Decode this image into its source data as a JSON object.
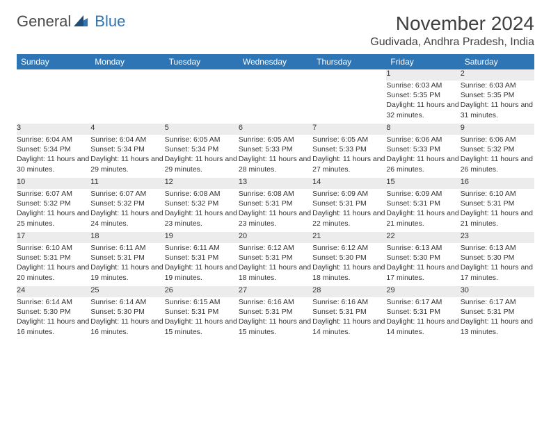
{
  "logo": {
    "text1": "General",
    "text2": "Blue"
  },
  "header": {
    "month_title": "November 2024",
    "location": "Gudivada, Andhra Pradesh, India"
  },
  "colors": {
    "header_bg": "#2e75b6",
    "header_text": "#ffffff",
    "daynum_bg": "#ececec",
    "text": "#333333",
    "logo_gray": "#4a4a4a",
    "logo_blue": "#2e75b6"
  },
  "weekdays": [
    "Sunday",
    "Monday",
    "Tuesday",
    "Wednesday",
    "Thursday",
    "Friday",
    "Saturday"
  ],
  "weeks": [
    [
      null,
      null,
      null,
      null,
      null,
      {
        "n": "1",
        "sr": "Sunrise: 6:03 AM",
        "ss": "Sunset: 5:35 PM",
        "dl": "Daylight: 11 hours and 32 minutes."
      },
      {
        "n": "2",
        "sr": "Sunrise: 6:03 AM",
        "ss": "Sunset: 5:35 PM",
        "dl": "Daylight: 11 hours and 31 minutes."
      }
    ],
    [
      {
        "n": "3",
        "sr": "Sunrise: 6:04 AM",
        "ss": "Sunset: 5:34 PM",
        "dl": "Daylight: 11 hours and 30 minutes."
      },
      {
        "n": "4",
        "sr": "Sunrise: 6:04 AM",
        "ss": "Sunset: 5:34 PM",
        "dl": "Daylight: 11 hours and 29 minutes."
      },
      {
        "n": "5",
        "sr": "Sunrise: 6:05 AM",
        "ss": "Sunset: 5:34 PM",
        "dl": "Daylight: 11 hours and 29 minutes."
      },
      {
        "n": "6",
        "sr": "Sunrise: 6:05 AM",
        "ss": "Sunset: 5:33 PM",
        "dl": "Daylight: 11 hours and 28 minutes."
      },
      {
        "n": "7",
        "sr": "Sunrise: 6:05 AM",
        "ss": "Sunset: 5:33 PM",
        "dl": "Daylight: 11 hours and 27 minutes."
      },
      {
        "n": "8",
        "sr": "Sunrise: 6:06 AM",
        "ss": "Sunset: 5:33 PM",
        "dl": "Daylight: 11 hours and 26 minutes."
      },
      {
        "n": "9",
        "sr": "Sunrise: 6:06 AM",
        "ss": "Sunset: 5:32 PM",
        "dl": "Daylight: 11 hours and 26 minutes."
      }
    ],
    [
      {
        "n": "10",
        "sr": "Sunrise: 6:07 AM",
        "ss": "Sunset: 5:32 PM",
        "dl": "Daylight: 11 hours and 25 minutes."
      },
      {
        "n": "11",
        "sr": "Sunrise: 6:07 AM",
        "ss": "Sunset: 5:32 PM",
        "dl": "Daylight: 11 hours and 24 minutes."
      },
      {
        "n": "12",
        "sr": "Sunrise: 6:08 AM",
        "ss": "Sunset: 5:32 PM",
        "dl": "Daylight: 11 hours and 23 minutes."
      },
      {
        "n": "13",
        "sr": "Sunrise: 6:08 AM",
        "ss": "Sunset: 5:31 PM",
        "dl": "Daylight: 11 hours and 23 minutes."
      },
      {
        "n": "14",
        "sr": "Sunrise: 6:09 AM",
        "ss": "Sunset: 5:31 PM",
        "dl": "Daylight: 11 hours and 22 minutes."
      },
      {
        "n": "15",
        "sr": "Sunrise: 6:09 AM",
        "ss": "Sunset: 5:31 PM",
        "dl": "Daylight: 11 hours and 21 minutes."
      },
      {
        "n": "16",
        "sr": "Sunrise: 6:10 AM",
        "ss": "Sunset: 5:31 PM",
        "dl": "Daylight: 11 hours and 21 minutes."
      }
    ],
    [
      {
        "n": "17",
        "sr": "Sunrise: 6:10 AM",
        "ss": "Sunset: 5:31 PM",
        "dl": "Daylight: 11 hours and 20 minutes."
      },
      {
        "n": "18",
        "sr": "Sunrise: 6:11 AM",
        "ss": "Sunset: 5:31 PM",
        "dl": "Daylight: 11 hours and 19 minutes."
      },
      {
        "n": "19",
        "sr": "Sunrise: 6:11 AM",
        "ss": "Sunset: 5:31 PM",
        "dl": "Daylight: 11 hours and 19 minutes."
      },
      {
        "n": "20",
        "sr": "Sunrise: 6:12 AM",
        "ss": "Sunset: 5:31 PM",
        "dl": "Daylight: 11 hours and 18 minutes."
      },
      {
        "n": "21",
        "sr": "Sunrise: 6:12 AM",
        "ss": "Sunset: 5:30 PM",
        "dl": "Daylight: 11 hours and 18 minutes."
      },
      {
        "n": "22",
        "sr": "Sunrise: 6:13 AM",
        "ss": "Sunset: 5:30 PM",
        "dl": "Daylight: 11 hours and 17 minutes."
      },
      {
        "n": "23",
        "sr": "Sunrise: 6:13 AM",
        "ss": "Sunset: 5:30 PM",
        "dl": "Daylight: 11 hours and 17 minutes."
      }
    ],
    [
      {
        "n": "24",
        "sr": "Sunrise: 6:14 AM",
        "ss": "Sunset: 5:30 PM",
        "dl": "Daylight: 11 hours and 16 minutes."
      },
      {
        "n": "25",
        "sr": "Sunrise: 6:14 AM",
        "ss": "Sunset: 5:30 PM",
        "dl": "Daylight: 11 hours and 16 minutes."
      },
      {
        "n": "26",
        "sr": "Sunrise: 6:15 AM",
        "ss": "Sunset: 5:31 PM",
        "dl": "Daylight: 11 hours and 15 minutes."
      },
      {
        "n": "27",
        "sr": "Sunrise: 6:16 AM",
        "ss": "Sunset: 5:31 PM",
        "dl": "Daylight: 11 hours and 15 minutes."
      },
      {
        "n": "28",
        "sr": "Sunrise: 6:16 AM",
        "ss": "Sunset: 5:31 PM",
        "dl": "Daylight: 11 hours and 14 minutes."
      },
      {
        "n": "29",
        "sr": "Sunrise: 6:17 AM",
        "ss": "Sunset: 5:31 PM",
        "dl": "Daylight: 11 hours and 14 minutes."
      },
      {
        "n": "30",
        "sr": "Sunrise: 6:17 AM",
        "ss": "Sunset: 5:31 PM",
        "dl": "Daylight: 11 hours and 13 minutes."
      }
    ]
  ]
}
